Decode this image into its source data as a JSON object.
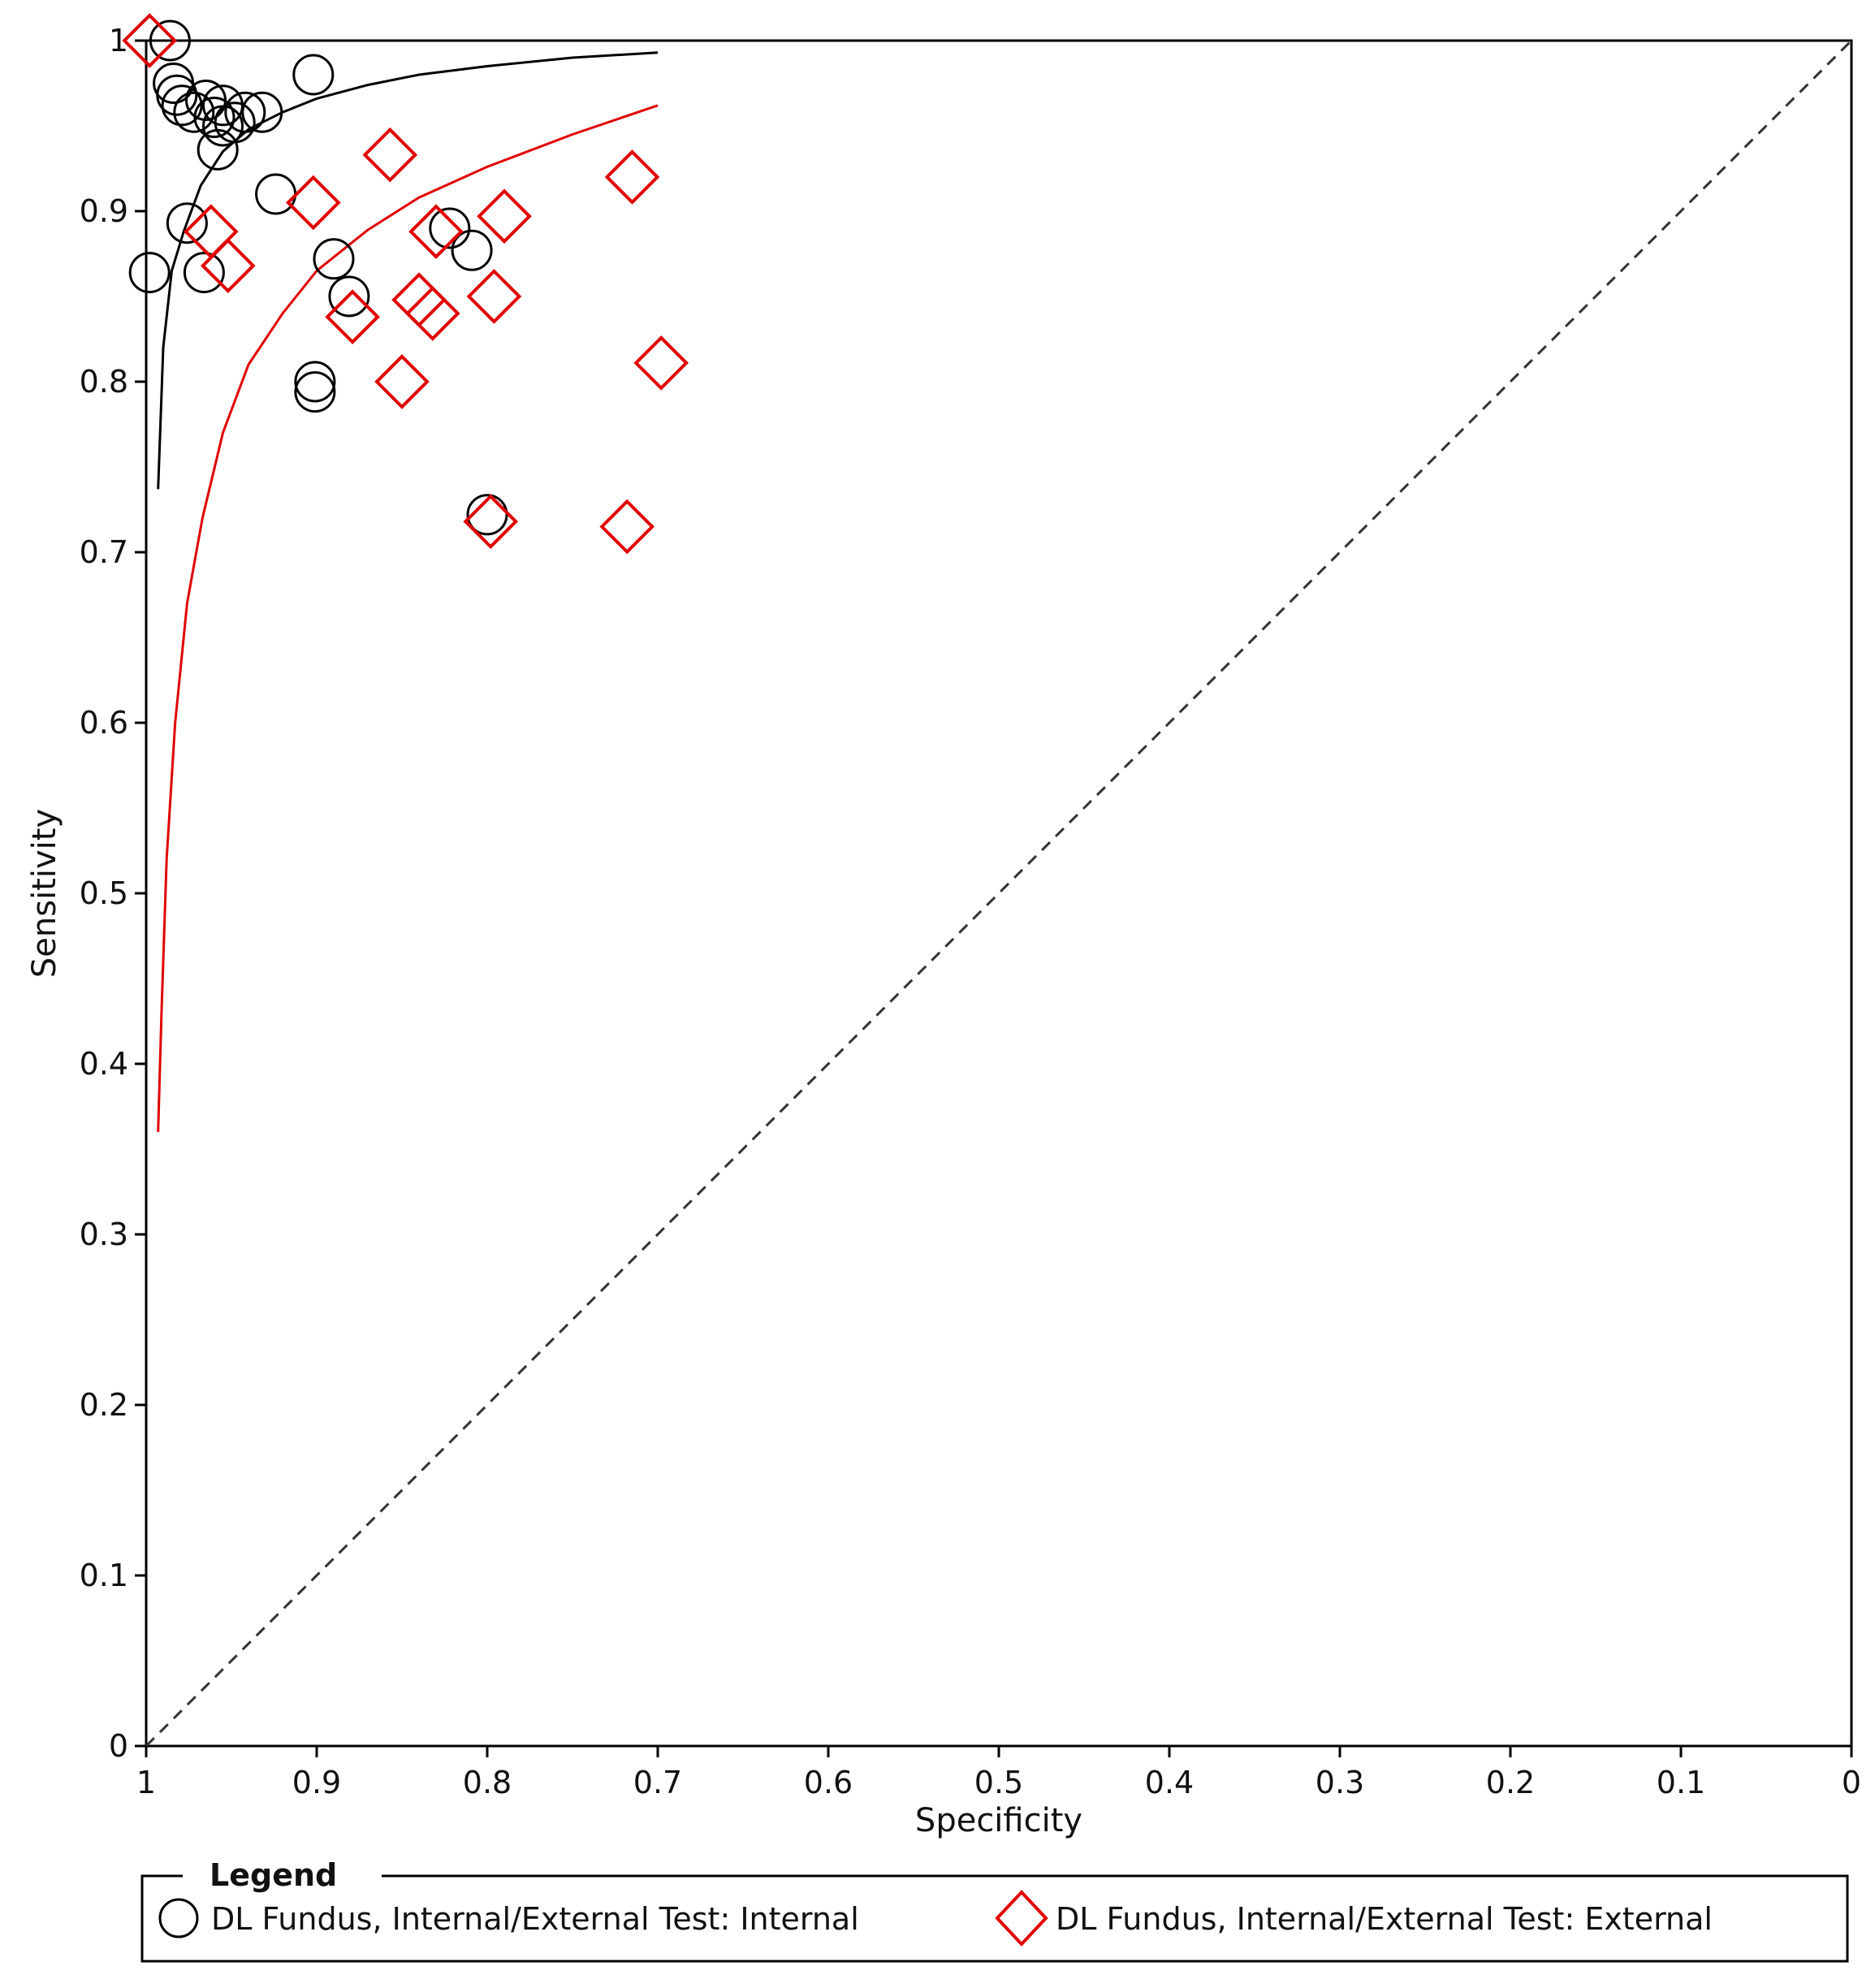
{
  "chart_data": {
    "type": "scatter",
    "xlabel": "Specificity",
    "ylabel": "Sensitivity",
    "x_reversed": true,
    "xlim": [
      1,
      0
    ],
    "ylim": [
      0,
      1
    ],
    "x_ticks": [
      "1",
      "0.9",
      "0.8",
      "0.7",
      "0.6",
      "0.5",
      "0.4",
      "0.3",
      "0.2",
      "0.1",
      "0"
    ],
    "y_ticks": [
      "0",
      "0.1",
      "0.2",
      "0.3",
      "0.4",
      "0.5",
      "0.6",
      "0.7",
      "0.8",
      "0.9",
      "1"
    ],
    "grid": false,
    "diagonal_reference_line": true,
    "legend": {
      "title": "Legend",
      "placement": "bottom",
      "entries": [
        {
          "label": "DL Fundus, Internal/External Test: Internal",
          "marker": "circle",
          "color": "#000000"
        },
        {
          "label": "DL Fundus, Internal/External Test: External",
          "marker": "diamond",
          "color": "#e00000"
        }
      ]
    },
    "series": [
      {
        "name": "DL Fundus, Internal/External Test: Internal",
        "marker": "circle",
        "color": "#000000",
        "points": [
          {
            "x": 0.986,
            "y": 1.0
          },
          {
            "x": 0.902,
            "y": 0.98
          },
          {
            "x": 0.984,
            "y": 0.975
          },
          {
            "x": 0.982,
            "y": 0.968
          },
          {
            "x": 0.979,
            "y": 0.962
          },
          {
            "x": 0.972,
            "y": 0.958
          },
          {
            "x": 0.965,
            "y": 0.965
          },
          {
            "x": 0.96,
            "y": 0.955
          },
          {
            "x": 0.955,
            "y": 0.962
          },
          {
            "x": 0.955,
            "y": 0.95
          },
          {
            "x": 0.948,
            "y": 0.952
          },
          {
            "x": 0.942,
            "y": 0.958
          },
          {
            "x": 0.932,
            "y": 0.958
          },
          {
            "x": 0.958,
            "y": 0.936
          },
          {
            "x": 0.924,
            "y": 0.91
          },
          {
            "x": 0.976,
            "y": 0.893
          },
          {
            "x": 0.822,
            "y": 0.89
          },
          {
            "x": 0.809,
            "y": 0.877
          },
          {
            "x": 0.89,
            "y": 0.872
          },
          {
            "x": 0.998,
            "y": 0.864
          },
          {
            "x": 0.966,
            "y": 0.864
          },
          {
            "x": 0.881,
            "y": 0.85
          },
          {
            "x": 0.901,
            "y": 0.8
          },
          {
            "x": 0.901,
            "y": 0.794
          },
          {
            "x": 0.8,
            "y": 0.722
          }
        ]
      },
      {
        "name": "DL Fundus, Internal/External Test: External",
        "marker": "diamond",
        "color": "#e00000",
        "points": [
          {
            "x": 0.998,
            "y": 1.0
          },
          {
            "x": 0.857,
            "y": 0.933
          },
          {
            "x": 0.715,
            "y": 0.92
          },
          {
            "x": 0.902,
            "y": 0.905
          },
          {
            "x": 0.79,
            "y": 0.897
          },
          {
            "x": 0.962,
            "y": 0.888
          },
          {
            "x": 0.83,
            "y": 0.888
          },
          {
            "x": 0.952,
            "y": 0.868
          },
          {
            "x": 0.796,
            "y": 0.85
          },
          {
            "x": 0.84,
            "y": 0.848
          },
          {
            "x": 0.832,
            "y": 0.84
          },
          {
            "x": 0.879,
            "y": 0.838
          },
          {
            "x": 0.698,
            "y": 0.811
          },
          {
            "x": 0.85,
            "y": 0.8
          },
          {
            "x": 0.798,
            "y": 0.718
          },
          {
            "x": 0.718,
            "y": 0.715
          }
        ]
      }
    ],
    "curves": [
      {
        "series": "DL Fundus, Internal/External Test: Internal",
        "color": "#000000",
        "points": [
          [
            0.993,
            0.737
          ],
          [
            0.99,
            0.82
          ],
          [
            0.985,
            0.865
          ],
          [
            0.978,
            0.888
          ],
          [
            0.968,
            0.915
          ],
          [
            0.955,
            0.935
          ],
          [
            0.94,
            0.948
          ],
          [
            0.92,
            0.958
          ],
          [
            0.9,
            0.966
          ],
          [
            0.87,
            0.974
          ],
          [
            0.84,
            0.98
          ],
          [
            0.8,
            0.985
          ],
          [
            0.75,
            0.99
          ],
          [
            0.7,
            0.993
          ]
        ]
      },
      {
        "series": "DL Fundus, Internal/External Test: External",
        "color": "#e00000",
        "points": [
          [
            0.993,
            0.36
          ],
          [
            0.991,
            0.43
          ],
          [
            0.988,
            0.52
          ],
          [
            0.983,
            0.6
          ],
          [
            0.976,
            0.67
          ],
          [
            0.967,
            0.72
          ],
          [
            0.955,
            0.77
          ],
          [
            0.94,
            0.81
          ],
          [
            0.92,
            0.84
          ],
          [
            0.9,
            0.865
          ],
          [
            0.87,
            0.889
          ],
          [
            0.84,
            0.908
          ],
          [
            0.8,
            0.926
          ],
          [
            0.75,
            0.945
          ],
          [
            0.7,
            0.962
          ]
        ]
      }
    ]
  }
}
